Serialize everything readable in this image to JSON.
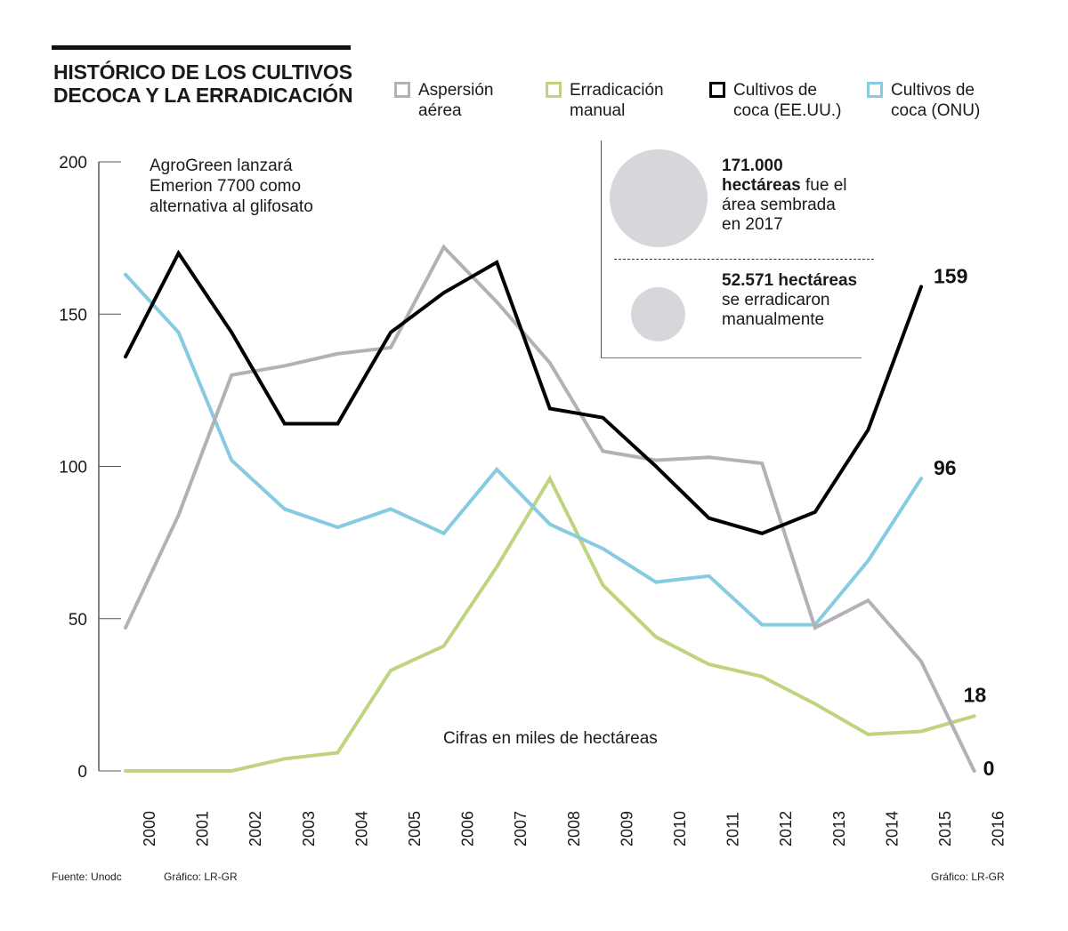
{
  "header": {
    "title_line1": "HISTÓRICO DE LOS CULTIVOS",
    "title_line2": "DECOCA Y LA ERRADICACIÓN"
  },
  "legend": [
    {
      "label": "Aspersión\naérea",
      "color": "#b2b1b6"
    },
    {
      "label": "Erradicación\nmanual",
      "color": "#bed47f"
    },
    {
      "label": "Cultivos de\ncoca (EE.UU.)",
      "color": "#000000"
    },
    {
      "label": "Cultivos de\ncoca (ONU)",
      "color": "#86cbe2"
    }
  ],
  "annotation": "AgroGreen lanzará\nEmerion 7700 como\nalternativa al glifosato",
  "info_box": {
    "item1": {
      "bold": "171.000",
      "bold2": "hectáreas",
      "rest1": " fue el",
      "rest2": "área sembrada",
      "rest3": "en 2017"
    },
    "item2": {
      "bold": "52.571 hectáreas",
      "rest1": "se erradicaron",
      "rest2": "manualmente"
    }
  },
  "units_note": "Cifras en miles de hectáreas",
  "footer": {
    "source": "Fuente: Unodc",
    "credit_left": "Gráfico: LR-GR",
    "credit_right": "Gráfico: LR-GR"
  },
  "chart_data": {
    "type": "line",
    "title": "HISTÓRICO DE LOS CULTIVOS DECOCA Y LA ERRADICACIÓN",
    "xlabel": "",
    "ylabel": "Cifras en miles de hectáreas",
    "ylim": [
      0,
      200
    ],
    "yticks": [
      0,
      50,
      100,
      150,
      200
    ],
    "grid": false,
    "legend_position": "top-right",
    "x": [
      "2000",
      "2001",
      "2002",
      "2003",
      "2004",
      "2005",
      "2006",
      "2007",
      "2008",
      "2009",
      "2010",
      "2011",
      "2012",
      "2013",
      "2014",
      "2015",
      "2016"
    ],
    "series": [
      {
        "name": "Aspersión aérea",
        "color": "#b2b1b6",
        "values": [
          47,
          84,
          130,
          133,
          137,
          139,
          172,
          154,
          134,
          105,
          102,
          103,
          101,
          47,
          56,
          36,
          0
        ],
        "end_label": "0"
      },
      {
        "name": "Erradicación manual",
        "color": "#bed47f",
        "values": [
          0,
          0,
          0,
          4,
          6,
          33,
          41,
          67,
          96,
          61,
          44,
          35,
          31,
          22,
          12,
          13,
          18
        ],
        "end_label": "18"
      },
      {
        "name": "Cultivos de coca (EE.UU.)",
        "color": "#000000",
        "values": [
          136,
          170,
          144,
          114,
          114,
          144,
          157,
          167,
          119,
          116,
          100,
          83,
          78,
          85,
          112,
          159,
          null
        ],
        "end_label": "159"
      },
      {
        "name": "Cultivos de coca (ONU)",
        "color": "#86cbe2",
        "values": [
          163,
          144,
          102,
          86,
          80,
          86,
          78,
          99,
          81,
          73,
          62,
          64,
          48,
          48,
          69,
          96,
          null
        ],
        "end_label": "96"
      }
    ]
  }
}
